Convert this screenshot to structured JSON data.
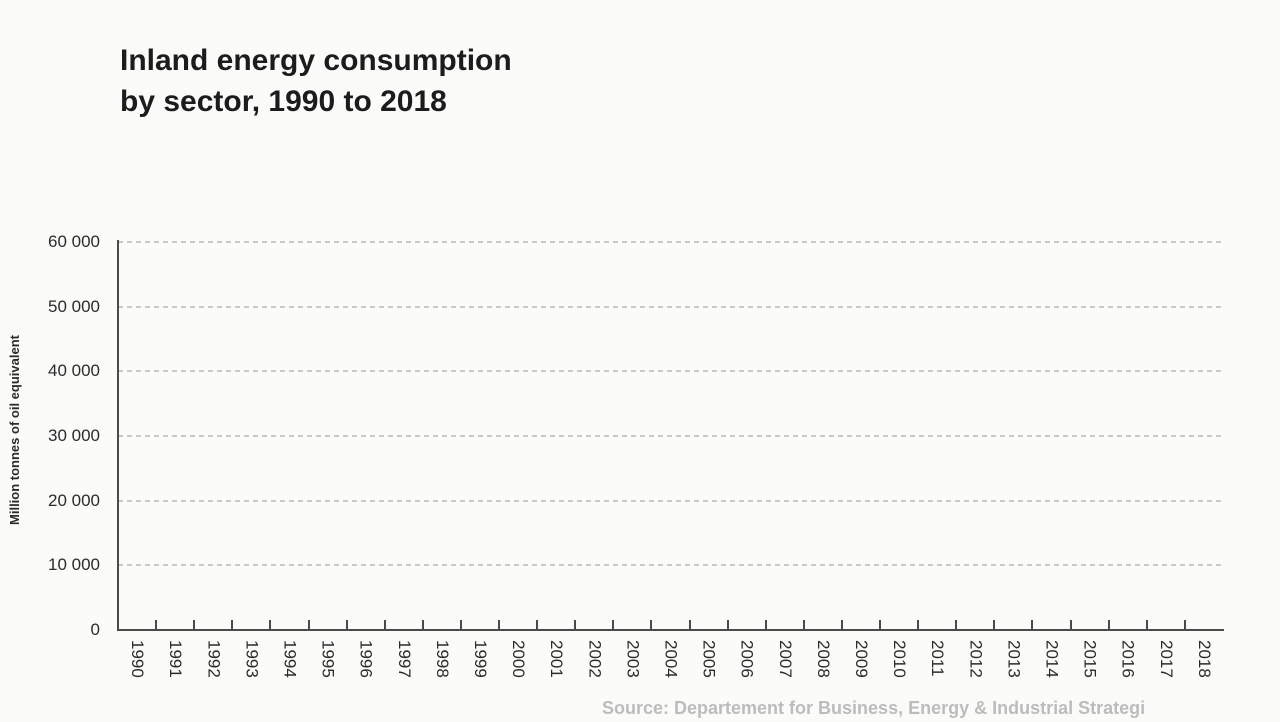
{
  "title": {
    "line1": "Inland energy consumption",
    "line2": "by sector, 1990 to 2018"
  },
  "source": {
    "label": "Source: Departement for Business, Energy & Industrial Strategi"
  },
  "chart_data": {
    "type": "bar",
    "title": "Inland energy consumption by sector, 1990 to 2018",
    "xlabel": "",
    "ylabel": "Million tonnes of oil equivalent",
    "categories": [
      "1990",
      "1991",
      "1992",
      "1993",
      "1994",
      "1995",
      "1996",
      "1997",
      "1998",
      "1999",
      "2000",
      "2001",
      "2002",
      "2003",
      "2004",
      "2005",
      "2006",
      "2007",
      "2008",
      "2009",
      "2010",
      "2011",
      "2012",
      "2013",
      "2014",
      "2015",
      "2016",
      "2017",
      "2018"
    ],
    "series": [],
    "ylim": [
      0,
      60000
    ],
    "y_ticks": [
      0,
      10000,
      20000,
      30000,
      40000,
      50000,
      60000
    ],
    "y_tick_labels": [
      "0",
      "10 000",
      "20 000",
      "30 000",
      "40 000",
      "50 000",
      "60 000"
    ],
    "grid": "horizontal-dashed",
    "legend": "none"
  },
  "colors": {
    "background": "#fbfbf9",
    "title_text": "#1c1c1c",
    "axis_text": "#2b2b2b",
    "axis_line": "#4a4a4a",
    "gridline": "#c9c9c9",
    "source_text": "#bcbcbc"
  }
}
